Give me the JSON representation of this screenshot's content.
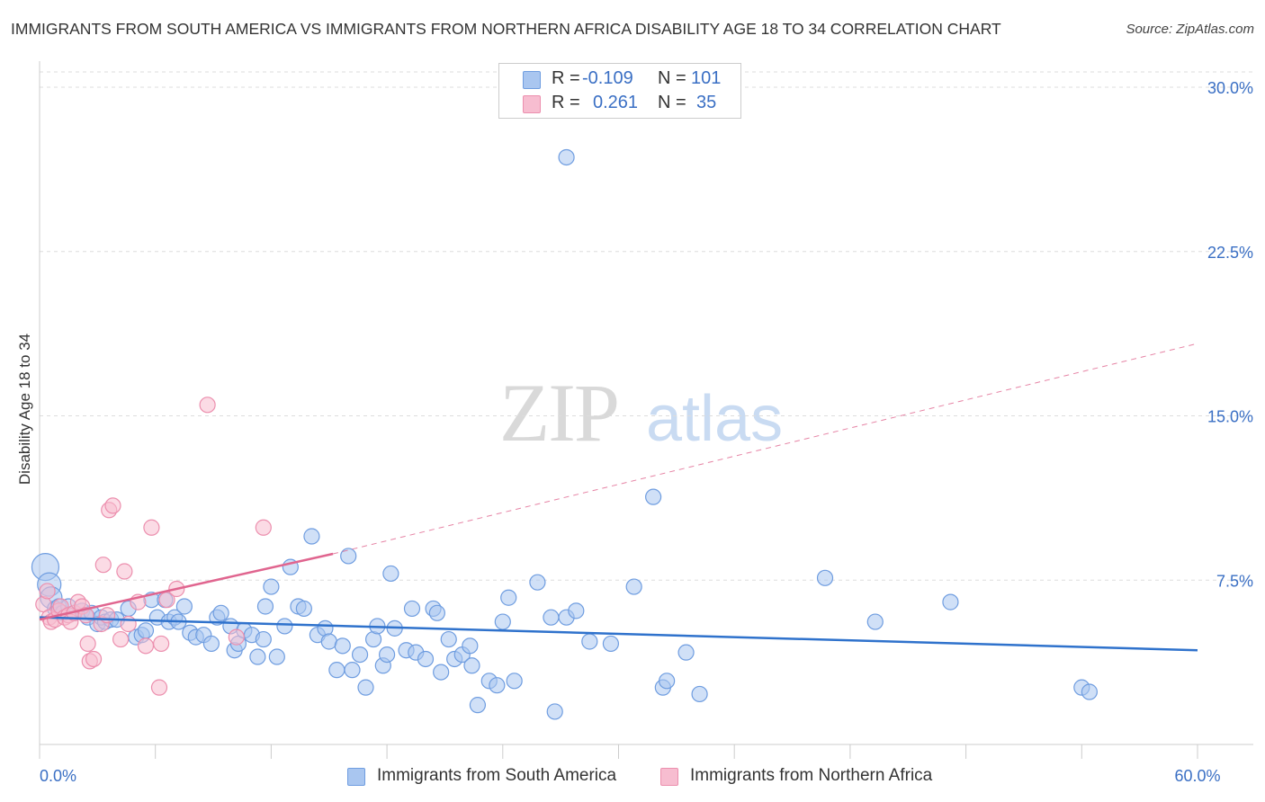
{
  "title": "IMMIGRANTS FROM SOUTH AMERICA VS IMMIGRANTS FROM NORTHERN AFRICA DISABILITY AGE 18 TO 34 CORRELATION CHART",
  "source": "Source: ZipAtlas.com",
  "watermark": {
    "zip": "ZIP",
    "atlas": "atlas"
  },
  "colors": {
    "blue_fill": "#a9c6f0",
    "blue_stroke": "#6f9de0",
    "blue_line": "#2f72cc",
    "pink_fill": "#f7bdd0",
    "pink_stroke": "#ec8fae",
    "pink_line": "#e0658f",
    "grid": "#dddddd",
    "axis_label": "#3a6fc4"
  },
  "legend": {
    "rows": [
      {
        "r_label": "R =",
        "r_value": "-0.109",
        "n_label": "N =",
        "n_value": "101",
        "color": "#a9c6f0",
        "stroke": "#6f9de0"
      },
      {
        "r_label": "R =",
        "r_value": "0.261",
        "n_label": "N =",
        "n_value": "35",
        "color": "#f7bdd0",
        "stroke": "#ec8fae"
      }
    ]
  },
  "bottom_legend": [
    {
      "label": "Immigrants from South America",
      "color": "#a9c6f0",
      "stroke": "#6f9de0"
    },
    {
      "label": "Immigrants from Northern Africa",
      "color": "#f7bdd0",
      "stroke": "#ec8fae"
    }
  ],
  "chart_data": {
    "type": "scatter",
    "title": "IMMIGRANTS FROM SOUTH AMERICA VS IMMIGRANTS FROM NORTHERN AFRICA DISABILITY AGE 18 TO 34 CORRELATION CHART",
    "xlabel": "",
    "ylabel": "Disability Age 18 to 34",
    "xlim": [
      0,
      60
    ],
    "ylim": [
      0,
      31
    ],
    "x_tick_labels": [
      {
        "value": 0,
        "label": "0.0%"
      },
      {
        "value": 60,
        "label": "60.0%"
      }
    ],
    "y_tick_labels": [
      {
        "value": 7.5,
        "label": "7.5%"
      },
      {
        "value": 15.0,
        "label": "15.0%"
      },
      {
        "value": 22.5,
        "label": "22.5%"
      },
      {
        "value": 30.0,
        "label": "30.0%"
      }
    ],
    "x_ticks": [
      0,
      6,
      12,
      18,
      24,
      30,
      36,
      42,
      48,
      54,
      60
    ],
    "series": [
      {
        "name": "Immigrants from South America",
        "color": "#a9c6f0",
        "points": [
          [
            0.3,
            8.1
          ],
          [
            0.5,
            7.3
          ],
          [
            0.6,
            6.7
          ],
          [
            0.8,
            6.2
          ],
          [
            1.0,
            6.3
          ],
          [
            1.2,
            6.0
          ],
          [
            1.5,
            6.3
          ],
          [
            1.8,
            6.0
          ],
          [
            2.2,
            6.1
          ],
          [
            2.5,
            5.8
          ],
          [
            2.7,
            6.0
          ],
          [
            3.0,
            5.5
          ],
          [
            3.2,
            5.8
          ],
          [
            3.4,
            5.6
          ],
          [
            3.7,
            5.7
          ],
          [
            4.0,
            5.7
          ],
          [
            4.6,
            6.2
          ],
          [
            5.0,
            4.9
          ],
          [
            5.3,
            5.0
          ],
          [
            5.5,
            5.2
          ],
          [
            5.8,
            6.6
          ],
          [
            6.1,
            5.8
          ],
          [
            6.5,
            6.6
          ],
          [
            6.7,
            5.6
          ],
          [
            7.0,
            5.8
          ],
          [
            7.2,
            5.6
          ],
          [
            7.5,
            6.3
          ],
          [
            7.8,
            5.1
          ],
          [
            8.1,
            4.9
          ],
          [
            8.5,
            5.0
          ],
          [
            8.9,
            4.6
          ],
          [
            9.2,
            5.8
          ],
          [
            9.4,
            6.0
          ],
          [
            9.9,
            5.4
          ],
          [
            10.1,
            4.3
          ],
          [
            10.3,
            4.6
          ],
          [
            10.6,
            5.2
          ],
          [
            11.0,
            5.0
          ],
          [
            11.3,
            4.0
          ],
          [
            11.6,
            4.8
          ],
          [
            11.7,
            6.3
          ],
          [
            12.0,
            7.2
          ],
          [
            12.3,
            4.0
          ],
          [
            12.7,
            5.4
          ],
          [
            13.0,
            8.1
          ],
          [
            13.4,
            6.3
          ],
          [
            13.7,
            6.2
          ],
          [
            14.1,
            9.5
          ],
          [
            14.4,
            5.0
          ],
          [
            14.8,
            5.3
          ],
          [
            15.0,
            4.7
          ],
          [
            15.4,
            3.4
          ],
          [
            15.7,
            4.5
          ],
          [
            16.0,
            8.6
          ],
          [
            16.2,
            3.4
          ],
          [
            16.6,
            4.1
          ],
          [
            16.9,
            2.6
          ],
          [
            17.3,
            4.8
          ],
          [
            17.5,
            5.4
          ],
          [
            17.8,
            3.6
          ],
          [
            18.0,
            4.1
          ],
          [
            18.2,
            7.8
          ],
          [
            18.4,
            5.3
          ],
          [
            19.0,
            4.3
          ],
          [
            19.3,
            6.2
          ],
          [
            19.5,
            4.2
          ],
          [
            20.0,
            3.9
          ],
          [
            20.4,
            6.2
          ],
          [
            20.6,
            6.0
          ],
          [
            20.8,
            3.3
          ],
          [
            21.2,
            4.8
          ],
          [
            21.5,
            3.9
          ],
          [
            21.9,
            4.1
          ],
          [
            22.4,
            3.6
          ],
          [
            22.3,
            4.5
          ],
          [
            22.7,
            1.8
          ],
          [
            23.3,
            2.9
          ],
          [
            23.7,
            2.7
          ],
          [
            24.0,
            5.6
          ],
          [
            24.3,
            6.7
          ],
          [
            24.6,
            2.9
          ],
          [
            25.8,
            7.4
          ],
          [
            26.5,
            5.8
          ],
          [
            26.7,
            1.5
          ],
          [
            27.3,
            26.8
          ],
          [
            27.3,
            5.8
          ],
          [
            27.8,
            6.1
          ],
          [
            28.5,
            4.7
          ],
          [
            29.6,
            4.6
          ],
          [
            30.8,
            7.2
          ],
          [
            31.8,
            11.3
          ],
          [
            32.3,
            2.6
          ],
          [
            32.5,
            2.9
          ],
          [
            33.5,
            4.2
          ],
          [
            34.2,
            2.3
          ],
          [
            40.7,
            7.6
          ],
          [
            43.3,
            5.6
          ],
          [
            47.2,
            6.5
          ],
          [
            54.0,
            2.6
          ],
          [
            54.4,
            2.4
          ]
        ],
        "sizes": {
          "0": 15,
          "1": 13,
          "2": 12
        }
      },
      {
        "name": "Immigrants from Northern Africa",
        "color": "#f7bdd0",
        "points": [
          [
            0.2,
            6.4
          ],
          [
            0.4,
            7.0
          ],
          [
            0.5,
            5.8
          ],
          [
            0.6,
            5.6
          ],
          [
            0.8,
            5.7
          ],
          [
            1.0,
            6.1
          ],
          [
            1.1,
            6.3
          ],
          [
            1.3,
            5.8
          ],
          [
            1.5,
            5.9
          ],
          [
            1.6,
            5.6
          ],
          [
            1.8,
            6.0
          ],
          [
            2.0,
            6.5
          ],
          [
            2.2,
            6.3
          ],
          [
            2.4,
            5.9
          ],
          [
            2.5,
            4.6
          ],
          [
            2.6,
            3.8
          ],
          [
            2.8,
            3.9
          ],
          [
            3.2,
            5.5
          ],
          [
            3.3,
            8.2
          ],
          [
            3.5,
            5.9
          ],
          [
            3.6,
            10.7
          ],
          [
            3.8,
            10.9
          ],
          [
            4.2,
            4.8
          ],
          [
            4.4,
            7.9
          ],
          [
            4.6,
            5.5
          ],
          [
            5.1,
            6.5
          ],
          [
            5.5,
            4.5
          ],
          [
            5.8,
            9.9
          ],
          [
            6.2,
            2.6
          ],
          [
            6.3,
            4.6
          ],
          [
            6.6,
            6.6
          ],
          [
            7.1,
            7.1
          ],
          [
            8.7,
            15.5
          ],
          [
            10.2,
            4.9
          ],
          [
            11.6,
            9.9
          ]
        ],
        "sizes": {}
      }
    ],
    "trend_lines": [
      {
        "series": "Immigrants from South America",
        "x": [
          0,
          60
        ],
        "y": [
          5.8,
          4.3
        ],
        "style": "solid"
      },
      {
        "series": "Immigrants from Northern Africa",
        "x": [
          0,
          15.2
        ],
        "y": [
          5.7,
          8.7
        ],
        "style": "solid"
      },
      {
        "series": "Immigrants from Northern Africa",
        "x": [
          15.2,
          60
        ],
        "y": [
          8.7,
          18.3
        ],
        "style": "dashed"
      }
    ]
  }
}
